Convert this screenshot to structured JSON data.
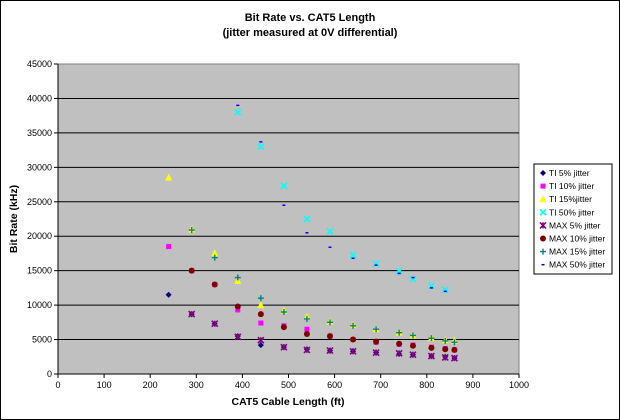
{
  "chart_data": {
    "type": "scatter",
    "title": "Bit Rate vs. CAT5 Length",
    "subtitle": "(jitter measured at 0V differential)",
    "xlabel": "CAT5 Cable Length (ft)",
    "ylabel": "Bit Rate (kHz)",
    "xlim": [
      0,
      1000
    ],
    "ylim": [
      0,
      45000
    ],
    "xticks": [
      0,
      100,
      200,
      300,
      400,
      500,
      600,
      700,
      800,
      900,
      1000
    ],
    "yticks": [
      0,
      5000,
      10000,
      15000,
      20000,
      25000,
      30000,
      35000,
      40000,
      45000
    ],
    "plot_background": "#c0c0c0",
    "grid": "horizontal",
    "legend_position": "right",
    "series": [
      {
        "name": "TI 5% jitter",
        "marker": "diamond",
        "color": "#000080",
        "points": [
          [
            240,
            11500
          ],
          [
            290,
            8700
          ],
          [
            340,
            7300
          ],
          [
            390,
            5500
          ],
          [
            440,
            4200
          ],
          [
            490,
            3900
          ],
          [
            540,
            3600
          ],
          [
            590,
            3400
          ],
          [
            640,
            3300
          ],
          [
            690,
            3100
          ],
          [
            740,
            2900
          ],
          [
            770,
            2800
          ],
          [
            810,
            2600
          ],
          [
            840,
            2500
          ],
          [
            860,
            2300
          ]
        ]
      },
      {
        "name": "TI 10% jitter",
        "marker": "square",
        "color": "#ff00ff",
        "points": [
          [
            240,
            18500
          ],
          [
            290,
            15000
          ],
          [
            340,
            13000
          ],
          [
            390,
            9300
          ],
          [
            440,
            7400
          ],
          [
            490,
            7000
          ],
          [
            540,
            6500
          ],
          [
            590,
            5500
          ],
          [
            640,
            5000
          ],
          [
            690,
            4600
          ],
          [
            740,
            4300
          ],
          [
            770,
            4200
          ],
          [
            810,
            3900
          ],
          [
            840,
            3700
          ],
          [
            860,
            3500
          ]
        ]
      },
      {
        "name": "TI 15%jitter",
        "marker": "triangle",
        "color": "#ffff00",
        "points": [
          [
            240,
            28500
          ],
          [
            290,
            21000
          ],
          [
            340,
            17500
          ],
          [
            390,
            13500
          ],
          [
            440,
            10000
          ],
          [
            490,
            9200
          ],
          [
            540,
            8300
          ],
          [
            590,
            7600
          ],
          [
            640,
            7100
          ],
          [
            690,
            6500
          ],
          [
            740,
            6000
          ],
          [
            770,
            5600
          ],
          [
            810,
            5200
          ],
          [
            840,
            4900
          ],
          [
            860,
            4800
          ]
        ]
      },
      {
        "name": "TI 50% jitter",
        "marker": "x",
        "color": "#00ffff",
        "points": [
          [
            390,
            38000
          ],
          [
            440,
            33000
          ],
          [
            490,
            27300
          ],
          [
            540,
            22500
          ],
          [
            590,
            20700
          ],
          [
            640,
            17300
          ],
          [
            690,
            16000
          ],
          [
            740,
            14900
          ],
          [
            770,
            13800
          ],
          [
            810,
            12800
          ],
          [
            840,
            12200
          ]
        ]
      },
      {
        "name": "MAX 5% jitter",
        "marker": "star",
        "color": "#800080",
        "points": [
          [
            290,
            8700
          ],
          [
            340,
            7300
          ],
          [
            390,
            5400
          ],
          [
            440,
            4900
          ],
          [
            490,
            3900
          ],
          [
            540,
            3500
          ],
          [
            590,
            3400
          ],
          [
            640,
            3300
          ],
          [
            690,
            3100
          ],
          [
            740,
            3000
          ],
          [
            770,
            2800
          ],
          [
            810,
            2600
          ],
          [
            840,
            2400
          ],
          [
            860,
            2300
          ]
        ]
      },
      {
        "name": "MAX 10% jitter",
        "marker": "circle",
        "color": "#800000",
        "points": [
          [
            290,
            15000
          ],
          [
            340,
            13000
          ],
          [
            390,
            9800
          ],
          [
            440,
            8700
          ],
          [
            490,
            6800
          ],
          [
            540,
            5800
          ],
          [
            590,
            5500
          ],
          [
            640,
            5000
          ],
          [
            690,
            4700
          ],
          [
            740,
            4400
          ],
          [
            770,
            4100
          ],
          [
            810,
            3800
          ],
          [
            840,
            3600
          ],
          [
            860,
            3500
          ]
        ]
      },
      {
        "name": "MAX 15% jitter",
        "marker": "plus",
        "color": "#008080",
        "points": [
          [
            290,
            20900
          ],
          [
            340,
            16900
          ],
          [
            390,
            14000
          ],
          [
            440,
            11000
          ],
          [
            490,
            9000
          ],
          [
            540,
            8000
          ],
          [
            590,
            7500
          ],
          [
            640,
            7000
          ],
          [
            690,
            6500
          ],
          [
            740,
            6000
          ],
          [
            770,
            5600
          ],
          [
            810,
            5200
          ],
          [
            840,
            4800
          ],
          [
            860,
            4600
          ]
        ]
      },
      {
        "name": "MAX 50% jitter",
        "marker": "dash",
        "color": "#0000ff",
        "points": [
          [
            390,
            39000
          ],
          [
            440,
            33700
          ],
          [
            490,
            24500
          ],
          [
            540,
            20500
          ],
          [
            590,
            18400
          ],
          [
            640,
            16800
          ],
          [
            690,
            15800
          ],
          [
            740,
            14600
          ],
          [
            770,
            14000
          ],
          [
            810,
            12500
          ],
          [
            840,
            12000
          ]
        ]
      }
    ]
  }
}
